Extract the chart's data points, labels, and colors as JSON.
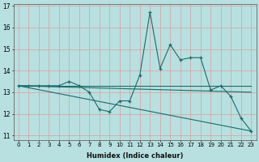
{
  "x": [
    0,
    1,
    2,
    3,
    4,
    5,
    6,
    7,
    8,
    9,
    10,
    11,
    12,
    13,
    14,
    15,
    16,
    17,
    18,
    19,
    20,
    21,
    22,
    23
  ],
  "line1": [
    13.3,
    13.3,
    13.3,
    13.3,
    13.3,
    13.5,
    13.3,
    13.0,
    12.2,
    12.1,
    12.6,
    12.6,
    13.8,
    16.7,
    14.1,
    15.2,
    14.5,
    14.6,
    14.6,
    13.1,
    13.3,
    12.8,
    11.8,
    11.2
  ],
  "line2": [
    13.3,
    13.3,
    13.3,
    13.3,
    13.3,
    13.3,
    13.3,
    13.3,
    13.3,
    13.3,
    13.3,
    13.3,
    13.3,
    13.3,
    13.3,
    13.3,
    13.3,
    13.3,
    13.3,
    13.3,
    13.3,
    13.3,
    13.3,
    13.3
  ],
  "line3_x": [
    0,
    23
  ],
  "line3_y": [
    13.3,
    13.0
  ],
  "line4_x": [
    0,
    23
  ],
  "line4_y": [
    13.3,
    11.2
  ],
  "bg_color": "#b8e0e0",
  "grid_color": "#d4a8a8",
  "line_color": "#1a6b6b",
  "xlabel": "Humidex (Indice chaleur)",
  "ylim": [
    10.8,
    17.1
  ],
  "yticks": [
    11,
    12,
    13,
    14,
    15,
    16,
    17
  ],
  "xticks": [
    0,
    1,
    2,
    3,
    4,
    5,
    6,
    7,
    8,
    9,
    10,
    11,
    12,
    13,
    14,
    15,
    16,
    17,
    18,
    19,
    20,
    21,
    22,
    23
  ]
}
